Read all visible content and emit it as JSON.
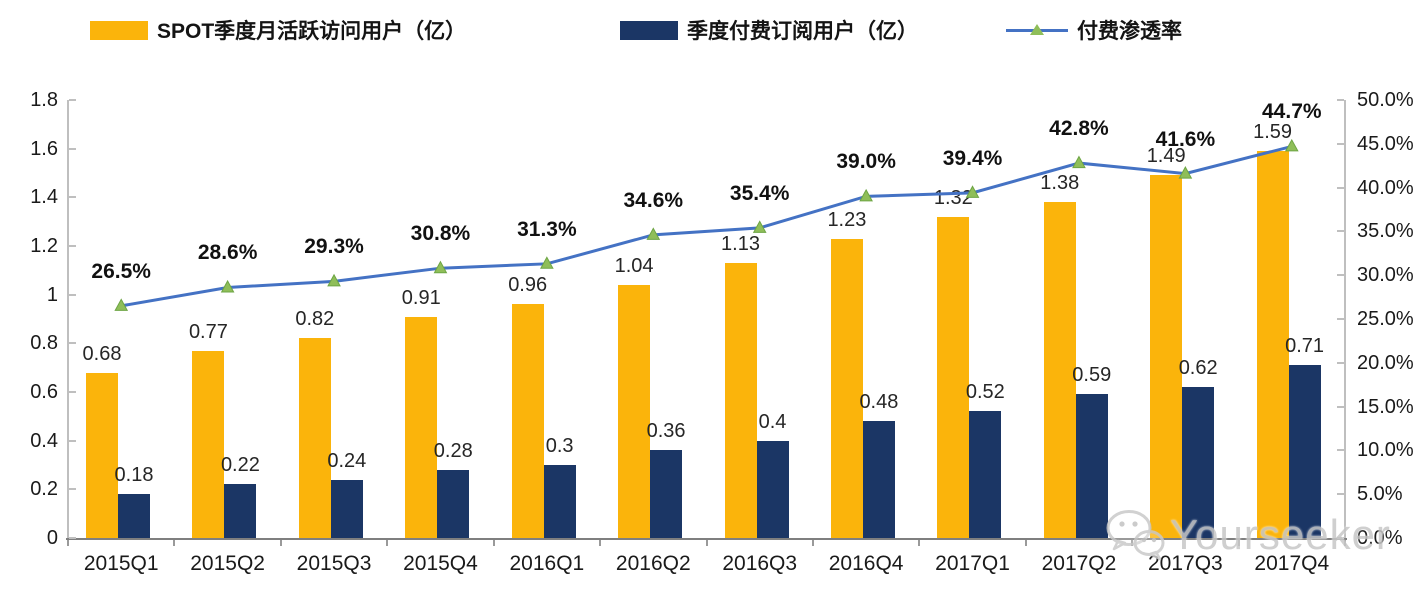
{
  "legend": [
    {
      "label": "SPOT季度月活跃访问用户（亿）",
      "marker": "bar-swatch",
      "color": "#fbb40b"
    },
    {
      "label": "季度付费订阅用户（亿）",
      "marker": "bar-swatch",
      "color": "#1b3665"
    },
    {
      "label": "付费渗透率",
      "marker": "line-with-triangle",
      "color": "#4472c4",
      "marker_color": "#8fbe59"
    }
  ],
  "chart_data": {
    "type": "bar",
    "subtype": "grouped-bars-with-line",
    "title": "",
    "grid": false,
    "legend_position": "top",
    "categories": [
      "2015Q1",
      "2015Q2",
      "2015Q3",
      "2015Q4",
      "2016Q1",
      "2016Q2",
      "2016Q3",
      "2016Q4",
      "2017Q1",
      "2017Q2",
      "2017Q3",
      "2017Q4"
    ],
    "series": [
      {
        "name": "SPOT季度月活跃访问用户（亿）",
        "type": "bar",
        "axis": "left",
        "color": "#fbb40b",
        "values": [
          0.68,
          0.77,
          0.82,
          0.91,
          0.96,
          1.04,
          1.13,
          1.23,
          1.32,
          1.38,
          1.49,
          1.59
        ],
        "labels": [
          "0.68",
          "0.77",
          "0.82",
          "0.91",
          "0.96",
          "1.04",
          "1.13",
          "1.23",
          "1.32",
          "1.38",
          "1.49",
          "1.59"
        ]
      },
      {
        "name": "季度付费订阅用户（亿）",
        "type": "bar",
        "axis": "left",
        "color": "#1b3665",
        "values": [
          0.18,
          0.22,
          0.24,
          0.28,
          0.3,
          0.36,
          0.4,
          0.48,
          0.52,
          0.59,
          0.62,
          0.71
        ],
        "labels": [
          "0.18",
          "0.22",
          "0.24",
          "0.28",
          "0.3",
          "0.36",
          "0.4",
          "0.48",
          "0.52",
          "0.59",
          "0.62",
          "0.71"
        ]
      },
      {
        "name": "付费渗透率",
        "type": "line",
        "axis": "right",
        "color": "#4472c4",
        "marker": "triangle",
        "marker_color": "#8fbe59",
        "marker_edge_color": "#6da544",
        "values": [
          26.5,
          28.6,
          29.3,
          30.8,
          31.3,
          34.6,
          35.4,
          39.0,
          39.4,
          42.8,
          41.6,
          44.7
        ],
        "labels": [
          "26.5%",
          "28.6%",
          "29.3%",
          "30.8%",
          "31.3%",
          "34.6%",
          "35.4%",
          "39.0%",
          "39.4%",
          "42.8%",
          "41.6%",
          "44.7%"
        ]
      }
    ],
    "left_axis": {
      "min": 0,
      "max": 1.8,
      "step": 0.2,
      "ticks": [
        "0",
        "0.2",
        "0.4",
        "0.6",
        "0.8",
        "1",
        "1.2",
        "1.4",
        "1.6",
        "1.8"
      ]
    },
    "right_axis": {
      "min": 0,
      "max": 50,
      "step": 5,
      "ticks": [
        "0.0%",
        "5.0%",
        "10.0%",
        "15.0%",
        "20.0%",
        "25.0%",
        "30.0%",
        "35.0%",
        "40.0%",
        "45.0%",
        "50.0%"
      ]
    }
  },
  "watermark": {
    "text": "Yourseeker",
    "icon": "wechat-icon"
  }
}
